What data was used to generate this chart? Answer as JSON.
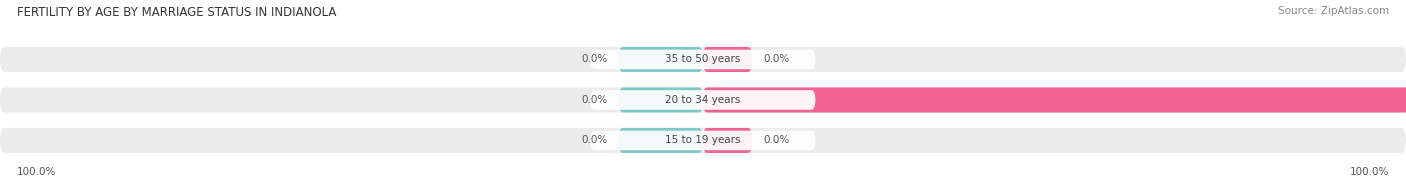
{
  "title": "FERTILITY BY AGE BY MARRIAGE STATUS IN INDIANOLA",
  "source": "Source: ZipAtlas.com",
  "categories": [
    "15 to 19 years",
    "20 to 34 years",
    "35 to 50 years"
  ],
  "married_values": [
    0.0,
    0.0,
    0.0
  ],
  "unmarried_values": [
    0.0,
    100.0,
    0.0
  ],
  "married_color": "#7ec8c8",
  "unmarried_color": "#f06292",
  "bar_bg_color": "#ebebeb",
  "label_bg_color": "#ffffff",
  "figsize": [
    14.06,
    1.96
  ],
  "dpi": 100,
  "left_label": "100.0%",
  "right_label": "100.0%",
  "title_fontsize": 8.5,
  "source_fontsize": 7.5,
  "label_fontsize": 7.5,
  "category_fontsize": 7.5,
  "legend_fontsize": 8
}
